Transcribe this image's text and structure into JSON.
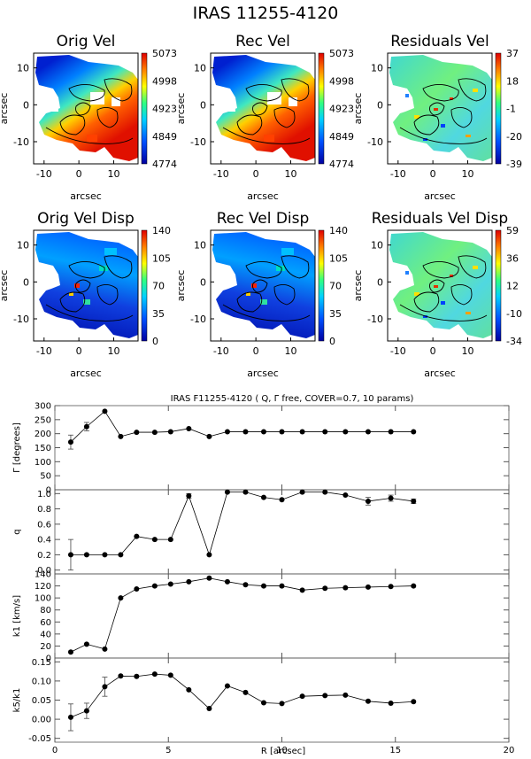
{
  "figure": {
    "title": "IRAS 11255-4120",
    "map_axis_label": "arcsec",
    "map_ticks": [
      "-10",
      "0",
      "10"
    ],
    "lower_title": "IRAS F11255-4120 ( Q, Γ  free, COVER=0.7, 10 params)",
    "lower_xlabel": "R [arcsec]"
  },
  "chart_data": [
    {
      "type": "heatmap",
      "title": "Orig Vel",
      "colorbar": [
        "5073",
        "4998",
        "4923",
        "4849",
        "4774"
      ],
      "kind": "velocity"
    },
    {
      "type": "heatmap",
      "title": "Rec Vel",
      "colorbar": [
        "5073",
        "4998",
        "4923",
        "4849",
        "4774"
      ],
      "kind": "velocity"
    },
    {
      "type": "heatmap",
      "title": "Residuals Vel",
      "colorbar": [
        "37",
        "18",
        "-1",
        "-20",
        "-39"
      ],
      "kind": "residual"
    },
    {
      "type": "heatmap",
      "title": "Orig Vel Disp",
      "colorbar": [
        "140",
        "105",
        "70",
        "35",
        "0"
      ],
      "kind": "dispersion"
    },
    {
      "type": "heatmap",
      "title": "Rec Vel Disp",
      "colorbar": [
        "140",
        "105",
        "70",
        "35",
        "0"
      ],
      "kind": "dispersion"
    },
    {
      "type": "heatmap",
      "title": "Residuals Vel Disp",
      "colorbar": [
        "59",
        "36",
        "12",
        "-10",
        "-34"
      ],
      "kind": "residual"
    },
    {
      "type": "scatter",
      "ylabel": "Γ [degrees]",
      "xlim": [
        0,
        20
      ],
      "ylim": [
        0,
        300
      ],
      "yticks": [
        "0",
        "50",
        "100",
        "150",
        "200",
        "250",
        "300"
      ],
      "x": [
        0.7,
        1.4,
        2.2,
        2.9,
        3.6,
        4.4,
        5.1,
        5.9,
        6.8,
        7.6,
        8.4,
        9.2,
        10.0,
        10.9,
        11.9,
        12.8,
        13.8,
        14.8,
        15.8
      ],
      "y": [
        170,
        225,
        280,
        190,
        205,
        205,
        207,
        218,
        190,
        207,
        207,
        207,
        207,
        207,
        207,
        207,
        207,
        207,
        207
      ],
      "err": [
        25,
        15,
        0,
        0,
        0,
        0,
        0,
        0,
        0,
        0,
        0,
        0,
        0,
        0,
        0,
        0,
        0,
        0,
        0
      ]
    },
    {
      "type": "scatter",
      "ylabel": "q",
      "xlim": [
        0,
        20
      ],
      "ylim": [
        -0.05,
        1.05
      ],
      "yticks": [
        "0.0",
        "0.2",
        "0.4",
        "0.6",
        "0.8",
        "1.0"
      ],
      "x": [
        0.7,
        1.4,
        2.2,
        2.9,
        3.6,
        4.4,
        5.1,
        5.9,
        6.8,
        7.6,
        8.4,
        9.2,
        10.0,
        10.9,
        11.9,
        12.8,
        13.8,
        14.8,
        15.8
      ],
      "y": [
        0.2,
        0.2,
        0.2,
        0.2,
        0.44,
        0.4,
        0.4,
        0.97,
        0.2,
        1.02,
        1.02,
        0.95,
        0.92,
        1.02,
        1.02,
        0.98,
        0.9,
        0.94,
        0.9
      ],
      "err": [
        0.2,
        0,
        0,
        0,
        0,
        0,
        0,
        0.03,
        0,
        0,
        0,
        0,
        0,
        0,
        0,
        0,
        0.05,
        0.04,
        0.03
      ]
    },
    {
      "type": "scatter",
      "ylabel": "k1 [km/s]",
      "xlim": [
        0,
        20
      ],
      "ylim": [
        0,
        140
      ],
      "yticks": [
        "0",
        "20",
        "40",
        "60",
        "80",
        "100",
        "120",
        "140"
      ],
      "x": [
        0.7,
        1.4,
        2.2,
        2.9,
        3.6,
        4.4,
        5.1,
        5.9,
        6.8,
        7.6,
        8.4,
        9.2,
        10.0,
        10.9,
        11.9,
        12.8,
        13.8,
        14.8,
        15.8
      ],
      "y": [
        10,
        23,
        15,
        100,
        115,
        120,
        123,
        127,
        133,
        127,
        122,
        120,
        120,
        113,
        116,
        117,
        118,
        119,
        120
      ],
      "err": [
        0,
        0,
        0,
        0,
        0,
        0,
        0,
        0,
        0,
        0,
        0,
        0,
        0,
        0,
        0,
        0,
        0,
        0,
        0
      ]
    },
    {
      "type": "scatter",
      "ylabel": "k5/k1",
      "xlim": [
        0,
        20
      ],
      "ylim": [
        -0.06,
        0.16
      ],
      "yticks": [
        "-0.05",
        "0.00",
        "0.05",
        "0.10",
        "0.15"
      ],
      "xticks": [
        "0",
        "5",
        "10",
        "15",
        "20"
      ],
      "x": [
        0.7,
        1.4,
        2.2,
        2.9,
        3.6,
        4.4,
        5.1,
        5.9,
        6.8,
        7.6,
        8.4,
        9.2,
        10.0,
        10.9,
        11.9,
        12.8,
        13.8,
        14.8,
        15.8
      ],
      "y": [
        0.005,
        0.022,
        0.085,
        0.113,
        0.112,
        0.118,
        0.115,
        0.077,
        0.028,
        0.087,
        0.07,
        0.043,
        0.041,
        0.06,
        0.062,
        0.063,
        0.047,
        0.042,
        0.046
      ],
      "err": [
        0.035,
        0.02,
        0.025,
        0,
        0,
        0,
        0,
        0,
        0,
        0,
        0,
        0,
        0,
        0,
        0,
        0,
        0,
        0,
        0
      ]
    }
  ]
}
